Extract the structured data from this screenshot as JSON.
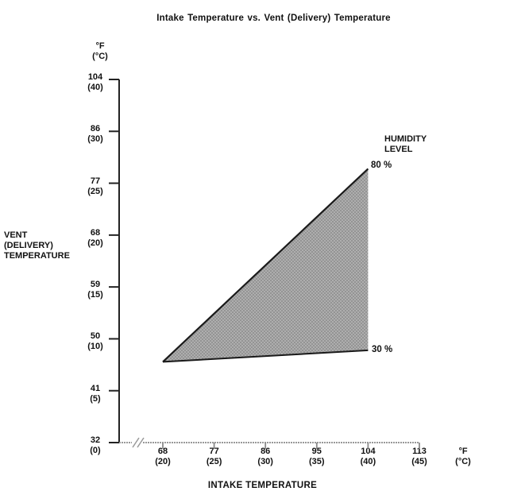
{
  "title": "Intake Temperature vs. Vent (Delivery) Temperature",
  "colors": {
    "text": "#111111",
    "y_axis": "#222222",
    "x_axis": "#999999",
    "boundary_line": "#1a1a1a",
    "fill_base": "#aeaeae",
    "fill_dot": "#8c8c8c"
  },
  "y_axis": {
    "unit_f": "°F",
    "unit_c": "(°C)",
    "title_lines": [
      "VENT",
      "(DELIVERY)",
      "TEMPERATURE"
    ]
  },
  "x_axis": {
    "unit_f": "°F",
    "unit_c": "(°C)",
    "title": "INTAKE TEMPERATURE",
    "has_axis_break": true
  },
  "legend": {
    "title_line1": "HUMIDITY",
    "title_line2": "LEVEL",
    "upper_label": "80 %",
    "lower_label": "30 %"
  },
  "chart_data": {
    "type": "area",
    "title": "Intake Temperature vs. Vent (Delivery) Temperature",
    "xlabel": "INTAKE TEMPERATURE",
    "ylabel": "VENT (DELIVERY) TEMPERATURE",
    "x_ticks_f": [
      68,
      77,
      86,
      95,
      104,
      113
    ],
    "x_ticks_c": [
      20,
      25,
      30,
      35,
      40,
      45
    ],
    "y_ticks_f": [
      104,
      86,
      77,
      68,
      59,
      50,
      41,
      32
    ],
    "y_ticks_c": [
      40,
      30,
      25,
      20,
      15,
      10,
      5,
      0
    ],
    "xlim_f": [
      68,
      113
    ],
    "grid": false,
    "legend_position": "right of 104°F edge",
    "series": [
      {
        "name": "80 % humidity level (upper boundary)",
        "points_f": [
          [
            68,
            46
          ],
          [
            104,
            79.5
          ]
        ],
        "points_c": [
          [
            20,
            7.8
          ],
          [
            40,
            26.4
          ]
        ]
      },
      {
        "name": "30 % humidity level (lower boundary)",
        "points_f": [
          [
            68,
            46
          ],
          [
            104,
            48
          ]
        ],
        "points_c": [
          [
            20,
            7.8
          ],
          [
            40,
            8.9
          ]
        ]
      }
    ],
    "shaded_region": "operating range between the 30 % and 80 % humidity lines, closed by a vertical edge at intake 104°F (40°C)"
  }
}
